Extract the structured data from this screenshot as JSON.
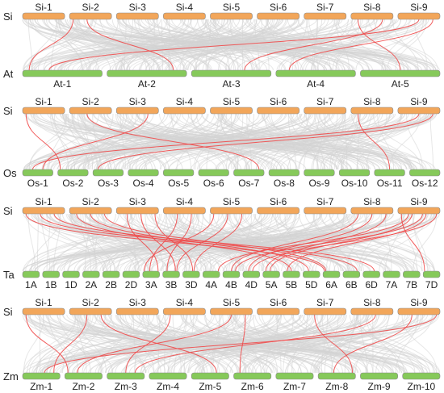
{
  "colors": {
    "top_bar": "#F2A65A",
    "bottom_bar": "#86C95A",
    "bar_edge": "#8a8a8a",
    "gray_link": "#D3D3D3",
    "red_link": "#F04A4A"
  },
  "panels": [
    {
      "top_species": "Si",
      "bottom_species": "At",
      "top_chroms": [
        "Si-1",
        "Si-2",
        "Si-3",
        "Si-4",
        "Si-5",
        "Si-6",
        "Si-7",
        "Si-8",
        "Si-9"
      ],
      "bottom_chroms": [
        "At-1",
        "At-2",
        "At-3",
        "At-4",
        "At-5"
      ],
      "red_links": [
        [
          2,
          1
        ],
        [
          2,
          2
        ],
        [
          8,
          3
        ],
        [
          8,
          5
        ],
        [
          9,
          1
        ],
        [
          9,
          4
        ]
      ]
    },
    {
      "top_species": "Si",
      "bottom_species": "Os",
      "top_chroms": [
        "Si-1",
        "Si-2",
        "Si-3",
        "Si-4",
        "Si-5",
        "Si-6",
        "Si-7",
        "Si-8",
        "Si-9"
      ],
      "bottom_chroms": [
        "Os-1",
        "Os-2",
        "Os-3",
        "Os-4",
        "Os-5",
        "Os-6",
        "Os-7",
        "Os-8",
        "Os-9",
        "Os-10",
        "Os-11",
        "Os-12"
      ],
      "red_links": [
        [
          1,
          2
        ],
        [
          2,
          7
        ],
        [
          3,
          1
        ],
        [
          8,
          11
        ],
        [
          9,
          1
        ],
        [
          9,
          3
        ]
      ]
    },
    {
      "top_species": "Si",
      "bottom_species": "Ta",
      "top_chroms": [
        "Si-1",
        "Si-2",
        "Si-3",
        "Si-4",
        "Si-5",
        "Si-6",
        "Si-7",
        "Si-8",
        "Si-9"
      ],
      "bottom_chroms": [
        "1A",
        "1B",
        "1D",
        "2A",
        "2B",
        "2D",
        "3A",
        "3B",
        "3D",
        "4A",
        "4B",
        "4D",
        "5A",
        "5B",
        "5D",
        "6A",
        "6B",
        "6D",
        "7A",
        "7B",
        "7D"
      ],
      "red_links": [
        [
          1,
          16
        ],
        [
          1,
          17
        ],
        [
          1,
          18
        ],
        [
          2,
          14
        ],
        [
          2,
          15
        ],
        [
          2,
          16
        ],
        [
          3,
          7
        ],
        [
          3,
          8
        ],
        [
          3,
          9
        ],
        [
          4,
          7
        ],
        [
          4,
          8
        ],
        [
          5,
          7
        ],
        [
          5,
          8
        ],
        [
          5,
          9
        ],
        [
          8,
          11
        ],
        [
          8,
          12
        ],
        [
          8,
          13
        ],
        [
          9,
          10
        ],
        [
          9,
          11
        ],
        [
          9,
          12
        ],
        [
          9,
          13
        ],
        [
          9,
          14
        ],
        [
          9,
          21
        ]
      ]
    },
    {
      "top_species": "Si",
      "bottom_species": "Zm",
      "top_chroms": [
        "Si-1",
        "Si-2",
        "Si-3",
        "Si-4",
        "Si-5",
        "Si-6",
        "Si-7",
        "Si-8",
        "Si-9"
      ],
      "bottom_chroms": [
        "Zm-1",
        "Zm-2",
        "Zm-3",
        "Zm-4",
        "Zm-5",
        "Zm-6",
        "Zm-7",
        "Zm-8",
        "Zm-9",
        "Zm-10"
      ],
      "red_links": [
        [
          1,
          2
        ],
        [
          2,
          1
        ],
        [
          2,
          5
        ],
        [
          4,
          3
        ],
        [
          5,
          2
        ],
        [
          5,
          6
        ],
        [
          7,
          8
        ],
        [
          8,
          3
        ],
        [
          9,
          1
        ],
        [
          9,
          8
        ]
      ]
    }
  ]
}
